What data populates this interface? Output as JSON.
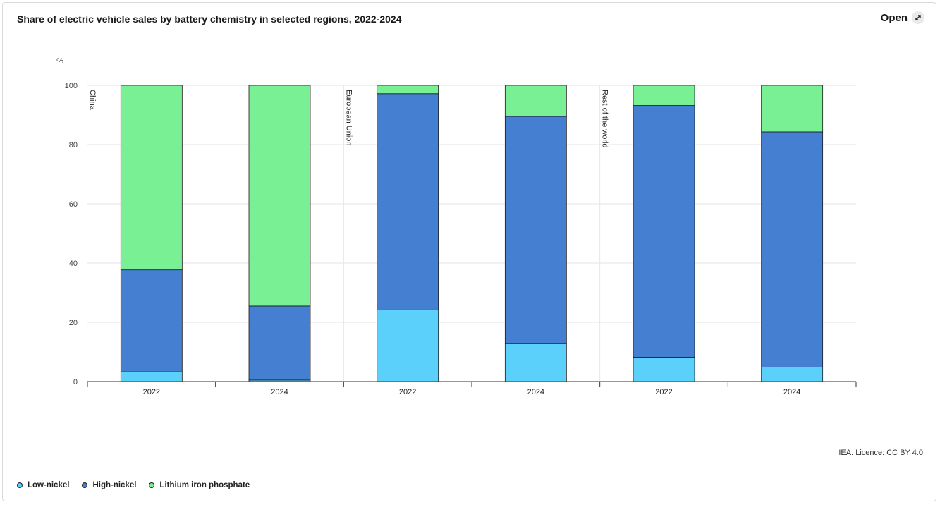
{
  "header": {
    "title": "Share of electric vehicle sales by battery chemistry in selected regions, 2022-2024",
    "open_label": "Open",
    "open_icon": "expand-arrows-icon"
  },
  "footer": {
    "licence": "IEA. Licence: CC BY 4.0"
  },
  "legend": {
    "items": [
      {
        "label": "Low-nickel",
        "color": "#5bd0fb"
      },
      {
        "label": "High-nickel",
        "color": "#447fd1"
      },
      {
        "label": "Lithium iron phosphate",
        "color": "#7af095"
      }
    ]
  },
  "chart_data": {
    "type": "bar",
    "stacked": true,
    "ylabel": "%",
    "ylim": [
      0,
      100
    ],
    "yticks": [
      0,
      20,
      40,
      60,
      80,
      100
    ],
    "grid": true,
    "legend_position": "bottom-left",
    "groups": [
      "China",
      "European Union",
      "Rest of the world"
    ],
    "categories": [
      "2022",
      "2024",
      "2022",
      "2024",
      "2022",
      "2024"
    ],
    "series": [
      {
        "name": "Low-nickel",
        "color": "#5bd0fb",
        "values": [
          3.3,
          0.5,
          24.2,
          12.8,
          8.2,
          4.9
        ]
      },
      {
        "name": "High-nickel",
        "color": "#447fd1",
        "values": [
          34.4,
          25.0,
          73.0,
          76.7,
          85.0,
          79.4
        ]
      },
      {
        "name": "Lithium iron phosphate",
        "color": "#7af095",
        "values": [
          62.3,
          74.5,
          2.8,
          10.5,
          6.8,
          15.7
        ]
      }
    ]
  }
}
